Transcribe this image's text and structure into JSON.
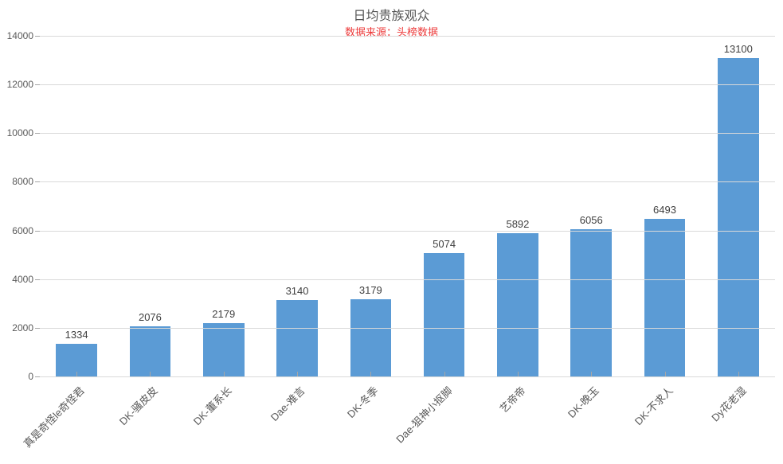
{
  "title": "日均贵族观众",
  "subtitle": "数据来源：头榜数据",
  "subtitle_color": "#ed3b3b",
  "type": "bar",
  "categories": [
    "真是奇怪le奇怪君",
    "DK-骚皮皮",
    "DK-董系长",
    "Dae-难言",
    "DK-冬季",
    "Dae-狙神小抠脚",
    "艺帝帝",
    "DK-晚玉",
    "DK-不求人",
    "Dy花老湿"
  ],
  "values": [
    1334,
    2076,
    2179,
    3140,
    3179,
    5074,
    5892,
    6056,
    6493,
    13100
  ],
  "bar_color": "#5b9bd5",
  "background_color": "#ffffff",
  "grid_color": "#d9d9d9",
  "axis_label_color": "#595959",
  "data_label_color": "#404040",
  "ylim": [
    0,
    14000
  ],
  "ytick_step": 2000,
  "bar_width_pct": 56,
  "title_fontsize": 16,
  "label_fontsize": 13,
  "tick_fontsize": 12
}
